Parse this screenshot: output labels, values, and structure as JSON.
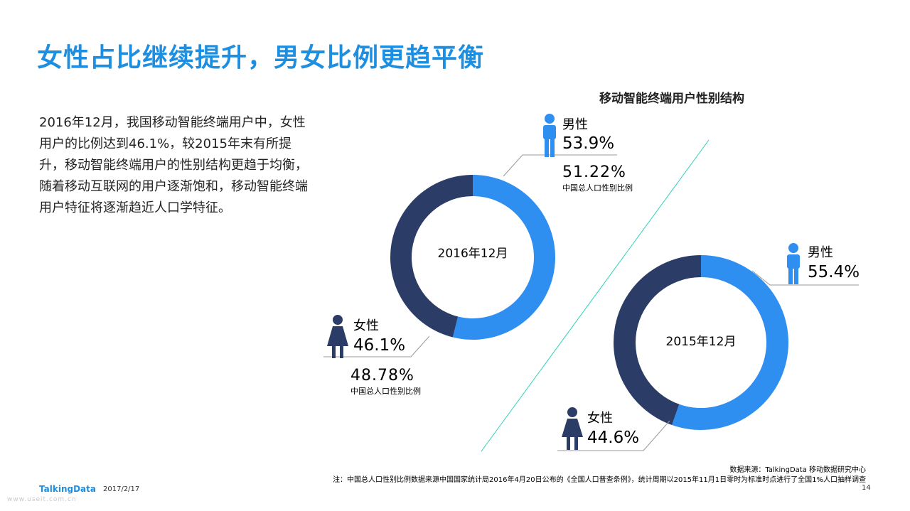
{
  "page": {
    "title": "女性占比继续提升，男女比例更趋平衡",
    "description": "2016年12月，我国移动智能终端用户中，女性用户的比例达到46.1%，较2015年末有所提升，移动智能终端用户的性别结构更趋于均衡，随着移动互联网的用户逐渐饱和，移动智能终端用户特征将逐渐趋近人口学特征。",
    "source": "数据来源：TalkingData 移动数据研究中心",
    "note": "注：中国总人口性别比例数据来源中国国家统计局2016年4月20日公布的《全国人口普查条例》，统计周期以2015年11月1日零时为标准时点进行了全国1%人口抽样调查",
    "logo": "TalkingData",
    "date": "2017/2/17",
    "page_number": "14",
    "watermark": "www.useit.com.cn"
  },
  "colors": {
    "male": "#2f8ff0",
    "female": "#2b3d66",
    "national": "#2dd1b8",
    "title": "#1e8fe0"
  },
  "chart_data": {
    "type": "pie",
    "title": "移动智能终端用户性别结构",
    "charts": [
      {
        "center_label": "2016年12月",
        "slices": [
          {
            "name": "男性",
            "value": 53.9,
            "label": "53.9%"
          },
          {
            "name": "女性",
            "value": 46.1,
            "label": "46.1%"
          }
        ],
        "national_reference": {
          "male": {
            "value": 51.22,
            "label": "51.22%"
          },
          "female": {
            "value": 48.78,
            "label": "48.78%"
          },
          "caption": "中国总人口性别比例"
        }
      },
      {
        "center_label": "2015年12月",
        "slices": [
          {
            "name": "男性",
            "value": 55.4,
            "label": "55.4%"
          },
          {
            "name": "女性",
            "value": 44.6,
            "label": "44.6%"
          }
        ]
      }
    ]
  }
}
